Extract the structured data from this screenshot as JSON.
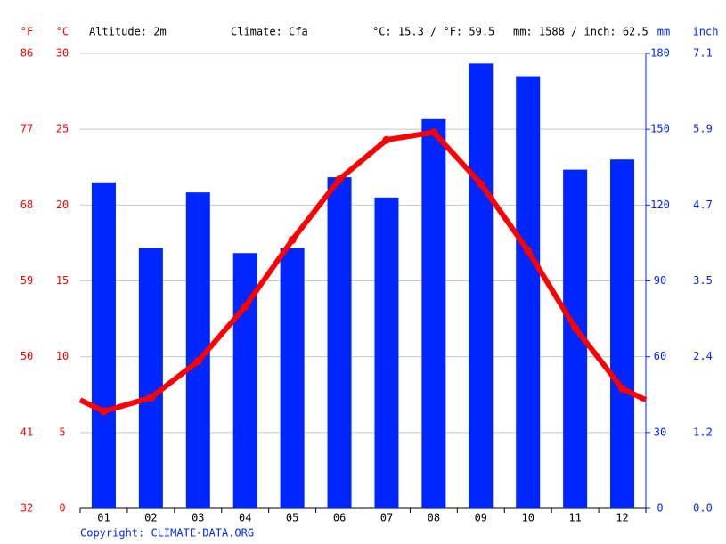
{
  "chart_data": {
    "type": "climate",
    "annotations": [
      "Altitude: 2m",
      "Climate: Cfa",
      "°C: 15.3 / °F: 59.5",
      "mm: 1588 / inch: 62.5"
    ],
    "f_unit": "°F",
    "y_unit": "°C",
    "y2_unit": "mm",
    "inch_unit": "inch",
    "categories": [
      "01",
      "02",
      "03",
      "04",
      "05",
      "06",
      "07",
      "08",
      "09",
      "10",
      "11",
      "12"
    ],
    "series": [
      {
        "type": "bar",
        "axis": "y2",
        "color": "#0026ff",
        "values": [
          129,
          103,
          125,
          101,
          103,
          131,
          123,
          154,
          176,
          171,
          134,
          138
        ]
      },
      {
        "type": "line",
        "axis": "y",
        "color": "#ff0000",
        "values": [
          6.4,
          7.3,
          9.7,
          13.3,
          17.7,
          21.7,
          24.3,
          24.8,
          21.4,
          17.0,
          11.9,
          7.9
        ]
      }
    ],
    "ylim": [
      0,
      30
    ],
    "yticks": [
      0,
      5,
      10,
      15,
      20,
      25,
      30
    ],
    "fticks": [
      {
        "value": 0,
        "label": "32"
      },
      {
        "value": 5,
        "label": "41"
      },
      {
        "value": 10,
        "label": "50"
      },
      {
        "value": 15,
        "label": "59"
      },
      {
        "value": 20,
        "label": "68"
      },
      {
        "value": 25,
        "label": "77"
      },
      {
        "value": 30,
        "label": "86"
      }
    ],
    "y2lim": [
      0,
      180
    ],
    "y2ticks": [
      0,
      30,
      60,
      90,
      120,
      150,
      180
    ],
    "inchticks": [
      {
        "value": 0,
        "label": "0.0"
      },
      {
        "value": 30,
        "label": "1.2"
      },
      {
        "value": 60,
        "label": "2.4"
      },
      {
        "value": 90,
        "label": "3.5"
      },
      {
        "value": 120,
        "label": "4.7"
      },
      {
        "value": 150,
        "label": "5.9"
      },
      {
        "value": 180,
        "label": "7.1"
      }
    ],
    "grid": true,
    "copyright": "Copyright: CLIMATE-DATA.ORG"
  }
}
